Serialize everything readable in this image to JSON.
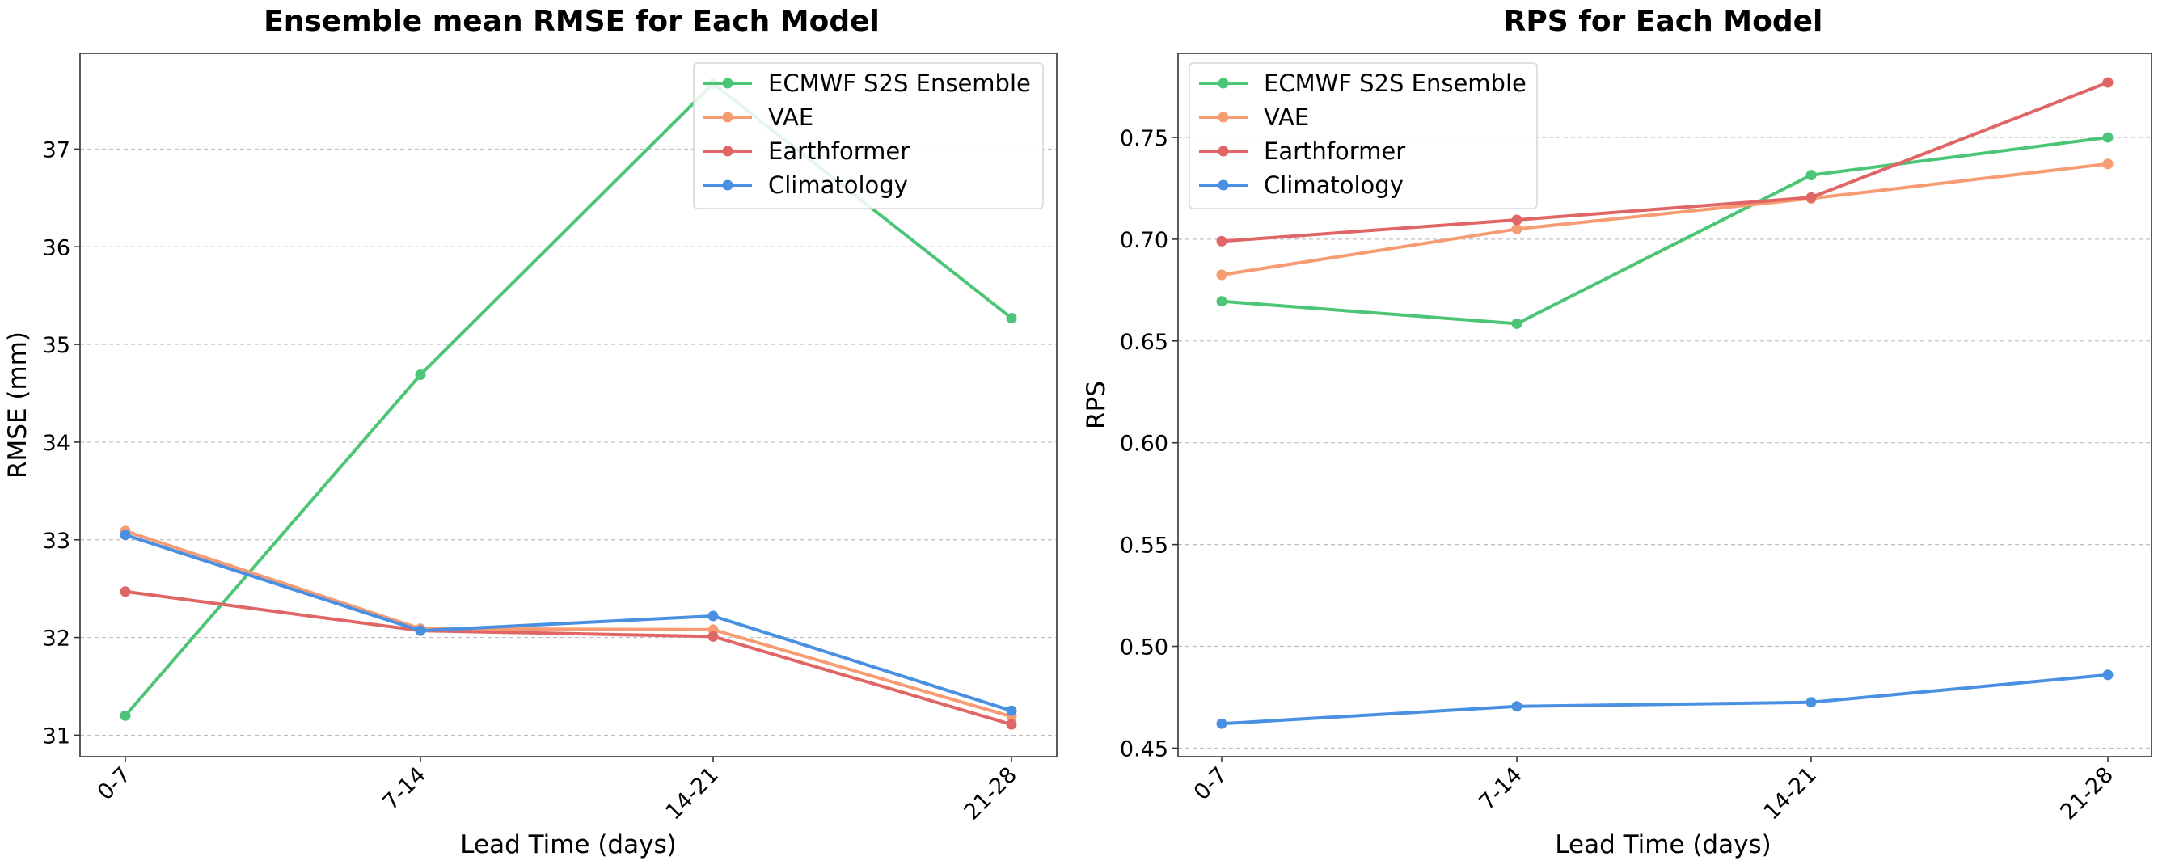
{
  "chart_data": [
    {
      "type": "line",
      "title": "Ensemble mean RMSE for Each Model",
      "xlabel": "Lead Time (days)",
      "ylabel": "RMSE (mm)",
      "categories": [
        "0-7",
        "7-14",
        "14-21",
        "21-28"
      ],
      "ylim": [
        30.78,
        37.98
      ],
      "yticks": [
        "31",
        "32",
        "33",
        "34",
        "35",
        "36",
        "37"
      ],
      "grid": "y-dashed",
      "legend_position": "top-right",
      "series": [
        {
          "name": "ECMWF S2S Ensemble",
          "color": "#4dc576",
          "values": [
            31.2,
            34.69,
            37.67,
            35.27
          ]
        },
        {
          "name": "VAE",
          "color": "#f79b72",
          "values": [
            33.09,
            32.09,
            32.08,
            31.19
          ]
        },
        {
          "name": "Earthformer",
          "color": "#e06666",
          "values": [
            32.47,
            32.07,
            32.01,
            31.11
          ]
        },
        {
          "name": "Climatology",
          "color": "#4a90e2",
          "values": [
            33.05,
            32.07,
            32.22,
            31.25
          ]
        }
      ]
    },
    {
      "type": "line",
      "title": "RPS for Each Model",
      "xlabel": "Lead Time (days)",
      "ylabel": "RPS",
      "categories": [
        "0-7",
        "7-14",
        "14-21",
        "21-28"
      ],
      "ylim": [
        0.4458,
        0.7913
      ],
      "yticks": [
        "0.45",
        "0.50",
        "0.55",
        "0.60",
        "0.65",
        "0.70",
        "0.75"
      ],
      "grid": "y-dashed",
      "legend_position": "top-left",
      "series": [
        {
          "name": "ECMWF S2S Ensemble",
          "color": "#4dc576",
          "values": [
            0.6695,
            0.6585,
            0.7315,
            0.75
          ]
        },
        {
          "name": "VAE",
          "color": "#f79b72",
          "values": [
            0.6825,
            0.705,
            0.72,
            0.737
          ]
        },
        {
          "name": "Earthformer",
          "color": "#e06666",
          "values": [
            0.699,
            0.7095,
            0.7205,
            0.777
          ]
        },
        {
          "name": "Climatology",
          "color": "#4a90e2",
          "values": [
            0.462,
            0.4705,
            0.4725,
            0.486
          ]
        }
      ]
    }
  ]
}
